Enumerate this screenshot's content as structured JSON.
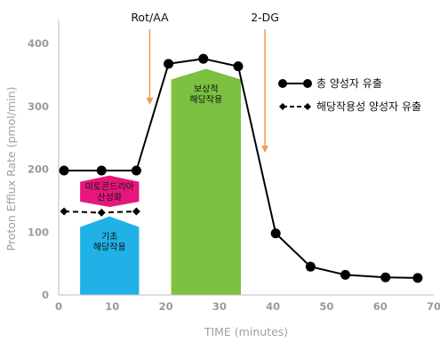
{
  "chart_data": {
    "type": "line",
    "xlabel": "TIME (minutes)",
    "ylabel": "Proton Efflux Rate (pmol/min)",
    "xlim": [
      0,
      70
    ],
    "ylim": [
      0,
      430
    ],
    "x_ticks": [
      0,
      10,
      20,
      30,
      40,
      50,
      60,
      70
    ],
    "y_ticks": [
      0,
      100,
      200,
      300,
      400
    ],
    "grid": false,
    "legend_position": "top-right",
    "colors": {
      "mito": "#e5177c",
      "basal": "#20b1e6",
      "compensatory": "#7cc142",
      "injection_arrow": "#f39a4e",
      "series": "#000000"
    },
    "series": [
      {
        "name": "총 양성자 유출",
        "style": "solid",
        "marker": "circle",
        "x": [
          1,
          8,
          14.5,
          20.5,
          27,
          33.5,
          40.5,
          47,
          53.5,
          61,
          67
        ],
        "y": [
          198,
          198,
          198,
          368,
          376,
          364,
          98,
          45,
          32,
          28,
          27
        ]
      },
      {
        "name": "해당작용성 양성자 유출",
        "style": "dashed",
        "marker": "diamond",
        "x": [
          1,
          8,
          14.5
        ],
        "y": [
          133,
          131,
          133
        ]
      }
    ],
    "regions": [
      {
        "label": "미토콘드리아\n산성화",
        "x0": 4,
        "x1": 15,
        "y0": 140,
        "y1": 190,
        "color": "#e5177c",
        "shape": "hexagon"
      },
      {
        "label": "기초\n해당작용",
        "x0": 4,
        "x1": 15,
        "y0": 0,
        "y1": 125,
        "color": "#20b1e6",
        "shape": "house"
      },
      {
        "label": "보상적\n해당작용",
        "x0": 21,
        "x1": 34,
        "y0": 0,
        "y1": 360,
        "color": "#7cc142",
        "shape": "house"
      }
    ],
    "annotations": [
      {
        "text": "Rot/AA",
        "x": 17
      },
      {
        "text": "2-DG",
        "x": 38.5
      }
    ]
  }
}
